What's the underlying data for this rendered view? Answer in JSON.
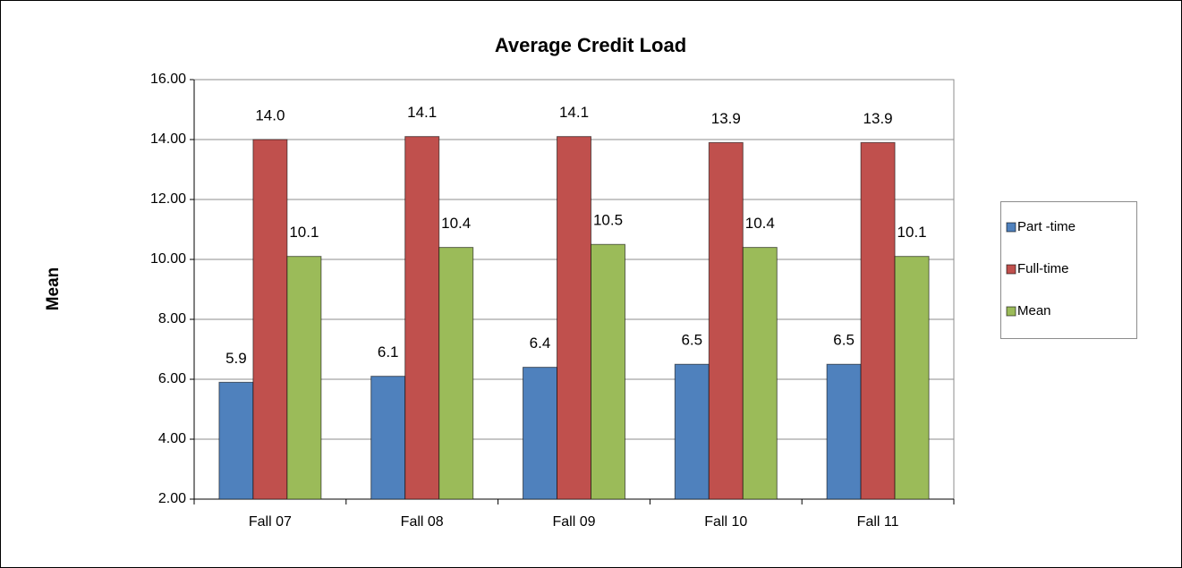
{
  "chart_data": {
    "type": "bar",
    "title": "Average Credit Load",
    "y_label": "Mean",
    "categories": [
      "Fall 07",
      "Fall 08",
      "Fall 09",
      "Fall 10",
      "Fall 11"
    ],
    "series": [
      {
        "name": "Part -time",
        "color": "#4f81bd",
        "values": [
          5.9,
          6.1,
          6.4,
          6.5,
          6.5
        ],
        "value_labels": [
          "5.9",
          "6.1",
          "6.4",
          "6.5",
          "6.5"
        ]
      },
      {
        "name": "Full-time",
        "color": "#c0504d",
        "values": [
          14.0,
          14.1,
          14.1,
          13.9,
          13.9
        ],
        "value_labels": [
          "14.0",
          "14.1",
          "14.1",
          "13.9",
          "13.9"
        ]
      },
      {
        "name": "Mean",
        "color": "#9bbb59",
        "values": [
          10.1,
          10.4,
          10.5,
          10.4,
          10.1
        ],
        "value_labels": [
          "10.1",
          "10.4",
          "10.5",
          "10.4",
          "10.1"
        ]
      }
    ],
    "ylim": [
      2,
      16
    ],
    "yticks": [
      {
        "value": 2,
        "label": "2.00"
      },
      {
        "value": 4,
        "label": "4.00"
      },
      {
        "value": 6,
        "label": "6.00"
      },
      {
        "value": 8,
        "label": "8.00"
      },
      {
        "value": 10,
        "label": "10.00"
      },
      {
        "value": 12,
        "label": "12.00"
      },
      {
        "value": 14,
        "label": "14.00"
      },
      {
        "value": 16,
        "label": "16.00"
      }
    ],
    "grid": true,
    "legend": "right"
  }
}
